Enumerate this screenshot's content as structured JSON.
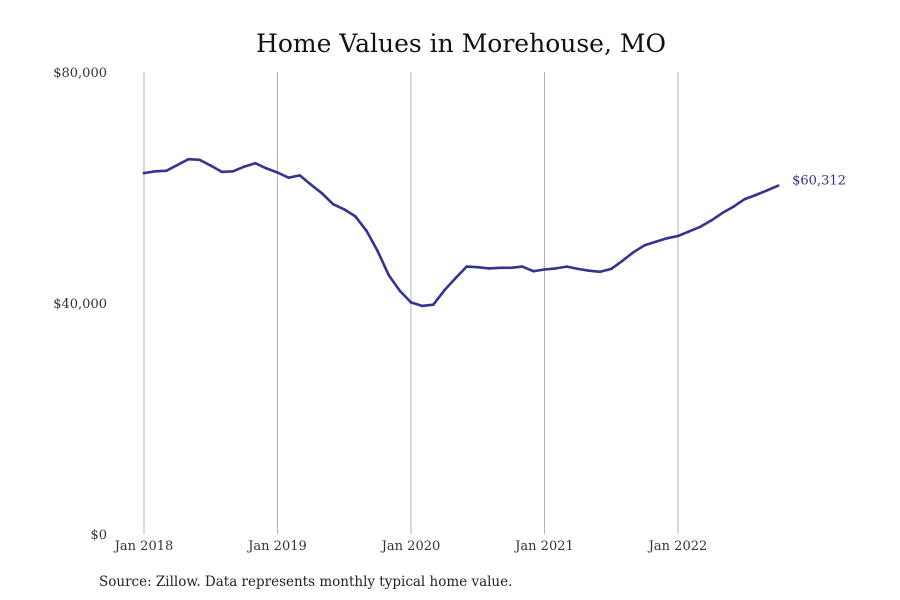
{
  "chart_data": {
    "type": "line",
    "title": "Home Values in Morehouse, MO",
    "xlabel": "",
    "ylabel": "",
    "x": [
      "2018-01",
      "2018-02",
      "2018-03",
      "2018-04",
      "2018-05",
      "2018-06",
      "2018-07",
      "2018-08",
      "2018-09",
      "2018-10",
      "2018-11",
      "2018-12",
      "2019-01",
      "2019-02",
      "2019-03",
      "2019-04",
      "2019-05",
      "2019-06",
      "2019-07",
      "2019-08",
      "2019-09",
      "2019-10",
      "2019-11",
      "2019-12",
      "2020-01",
      "2020-02",
      "2020-03",
      "2020-04",
      "2020-05",
      "2020-06",
      "2020-07",
      "2020-08",
      "2020-09",
      "2020-10",
      "2020-11",
      "2020-12",
      "2021-01",
      "2021-02",
      "2021-03",
      "2021-04",
      "2021-05",
      "2021-06",
      "2021-07",
      "2021-08",
      "2021-09",
      "2021-10",
      "2021-11",
      "2021-12",
      "2022-01",
      "2022-02",
      "2022-03",
      "2022-04",
      "2022-05",
      "2022-06",
      "2022-07",
      "2022-08",
      "2022-09",
      "2022-10"
    ],
    "series": [
      {
        "name": "",
        "values": [
          62500,
          62800,
          62900,
          63900,
          64900,
          64800,
          63800,
          62700,
          62800,
          63600,
          64200,
          63300,
          62600,
          61700,
          62100,
          60500,
          59000,
          57100,
          56200,
          55000,
          52500,
          49000,
          44800,
          42100,
          40100,
          39500,
          39700,
          42200,
          44300,
          46300,
          46200,
          46000,
          46100,
          46100,
          46300,
          45500,
          45800,
          46000,
          46300,
          45900,
          45600,
          45400,
          45900,
          47300,
          48800,
          50000,
          50600,
          51200,
          51600,
          52400,
          53200,
          54300,
          55600,
          56700,
          58000,
          58700,
          59500,
          60312
        ],
        "end_label": "$60,312",
        "color": "#33358e"
      }
    ],
    "x_ticks": [
      {
        "x": "2018-01",
        "label": "Jan 2018"
      },
      {
        "x": "2019-01",
        "label": "Jan 2019"
      },
      {
        "x": "2020-01",
        "label": "Jan 2020"
      },
      {
        "x": "2021-01",
        "label": "Jan 2021"
      },
      {
        "x": "2022-01",
        "label": "Jan 2022"
      }
    ],
    "y_ticks": [
      {
        "value": 0,
        "label": "$0"
      },
      {
        "value": 40000,
        "label": "$40,000"
      },
      {
        "value": 80000,
        "label": "$80,000"
      }
    ],
    "ylim": [
      0,
      80000
    ],
    "grid": "vertical",
    "legend": "none",
    "colors": {
      "line": "#33358e",
      "grid": "#b3b3b3",
      "end_label": "#33358e"
    }
  },
  "source_note": "Source: Zillow. Data represents monthly typical home value."
}
